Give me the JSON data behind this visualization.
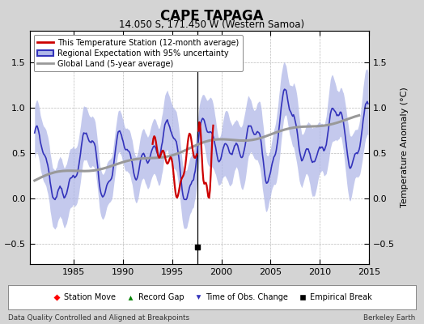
{
  "title": "CAPE TAPAGA",
  "subtitle": "14.050 S, 171.450 W (Western Samoa)",
  "ylabel": "Temperature Anomaly (°C)",
  "xlabel_left": "Data Quality Controlled and Aligned at Breakpoints",
  "xlabel_right": "Berkeley Earth",
  "xlim": [
    1980.5,
    2015.0
  ],
  "ylim": [
    -0.72,
    1.85
  ],
  "yticks": [
    -0.5,
    0,
    0.5,
    1.0,
    1.5
  ],
  "xticks": [
    1985,
    1990,
    1995,
    2000,
    2005,
    2010,
    2015
  ],
  "bg_color": "#d4d4d4",
  "plot_bg_color": "#ffffff",
  "grid_color": "#bbbbbb",
  "empirical_break_x": 1997.6,
  "empirical_break_y": -0.53,
  "regional_color": "#3333bb",
  "regional_fill_color": "#b0b8e8",
  "station_color": "#cc0000",
  "global_color": "#999999",
  "obs_change_marker_color": "#3333bb"
}
